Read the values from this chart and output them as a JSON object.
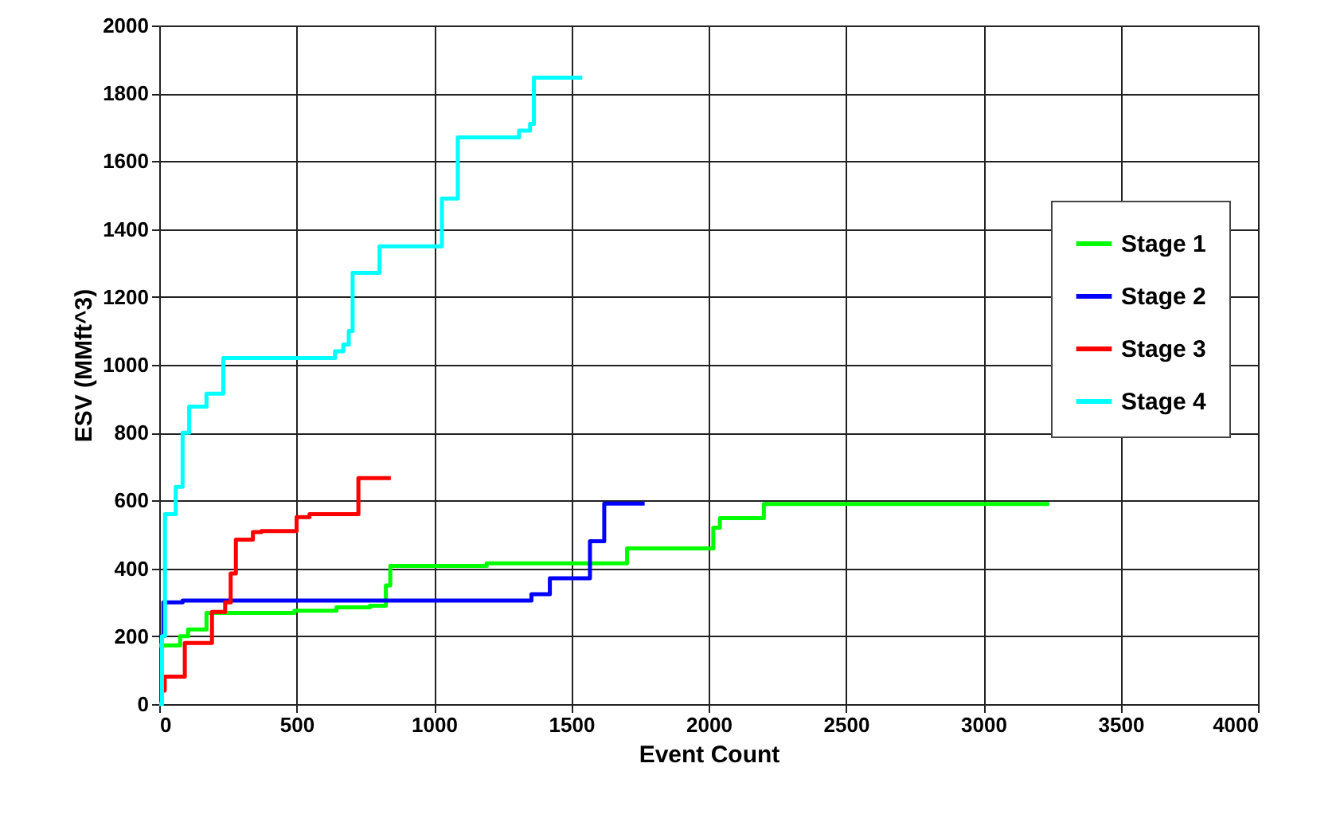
{
  "chart_data": {
    "type": "step",
    "xlabel": "Event Count",
    "ylabel": "ESV (MMft^3)",
    "xlim": [
      0,
      4000
    ],
    "xticks": [
      0,
      500,
      1000,
      1500,
      2000,
      2500,
      3000,
      3500,
      4000
    ],
    "ylim": [
      0,
      2000
    ],
    "yticks": [
      0,
      200,
      400,
      600,
      800,
      1000,
      1200,
      1400,
      1600,
      1800,
      2000
    ],
    "grid": true,
    "legend": "top right",
    "line_style": "solid",
    "marker": "none",
    "series": [
      {
        "name": "Stage 1",
        "color": "#00ff00",
        "x": [
          0,
          76,
          105,
          172,
          492,
          645,
          767,
          825,
          841,
          1192,
          1703,
          2017,
          2041,
          2201,
          3240
        ],
        "values": [
          173,
          200,
          220,
          269,
          275,
          285,
          290,
          350,
          407,
          415,
          459,
          520,
          548,
          590,
          590
        ]
      },
      {
        "name": "Stage 2",
        "color": "#0000ff",
        "x": [
          0,
          15,
          85,
          1355,
          1422,
          1568,
          1620,
          1767
        ],
        "values": [
          200,
          300,
          305,
          324,
          371,
          480,
          591,
          591
        ]
      },
      {
        "name": "Stage 3",
        "color": "#ff0000",
        "x": [
          10,
          20,
          93,
          192,
          240,
          260,
          279,
          341,
          372,
          500,
          547,
          725,
          843
        ],
        "values": [
          40,
          81,
          180,
          272,
          300,
          385,
          485,
          507,
          510,
          551,
          560,
          666,
          666
        ]
      },
      {
        "name": "Stage 4",
        "color": "#00ffff",
        "x": [
          0,
          10,
          21,
          60,
          85,
          109,
          172,
          233,
          640,
          670,
          690,
          704,
          802,
          1029,
          1087,
          1310,
          1350,
          1364,
          1540
        ],
        "values": [
          0,
          200,
          560,
          640,
          800,
          877,
          915,
          1020,
          1040,
          1060,
          1100,
          1271,
          1349,
          1490,
          1670,
          1690,
          1710,
          1846,
          1846
        ]
      }
    ]
  }
}
